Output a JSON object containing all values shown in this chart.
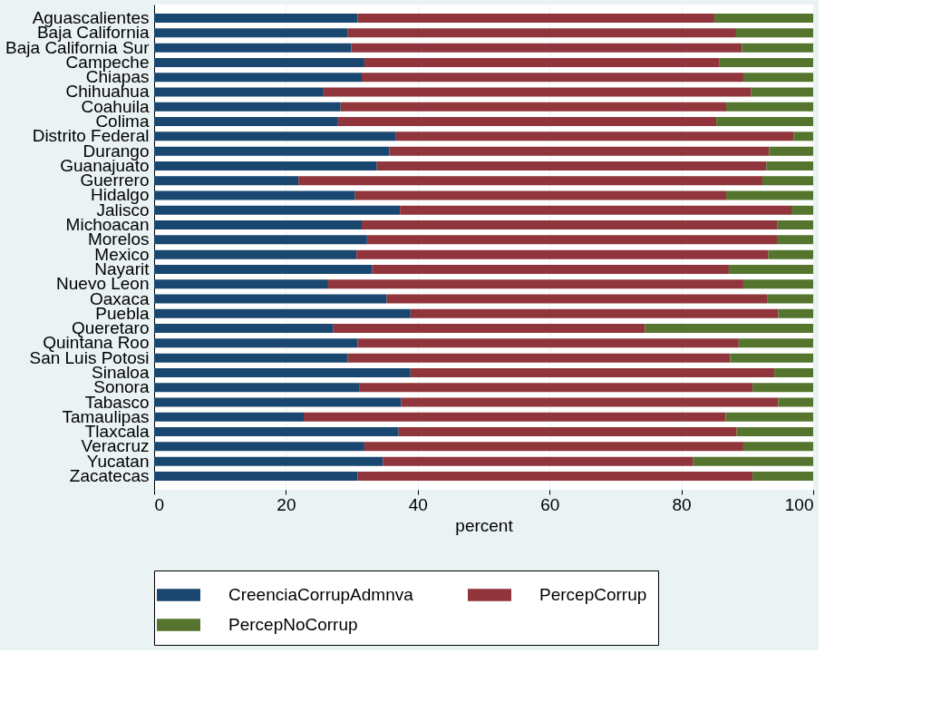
{
  "chart_data": {
    "type": "bar",
    "orientation": "horizontal",
    "stacked": true,
    "xlabel": "percent",
    "categories": [
      "Aguascalientes",
      "Baja California",
      "Baja California Sur",
      "Campeche",
      "Chiapas",
      "Chihuahua",
      "Coahuila",
      "Colima",
      "Distrito Federal",
      "Durango",
      "Guanajuato",
      "Guerrero",
      "Hidalgo",
      "Jalisco",
      "Michoacan",
      "Morelos",
      "Mexico",
      "Nayarit",
      "Nuevo Leon",
      "Oaxaca",
      "Puebla",
      "Queretaro",
      "Quintana Roo",
      "San Luis Potosi",
      "Sinaloa",
      "Sonora",
      "Tabasco",
      "Tamaulipas",
      "Tlaxcala",
      "Veracruz",
      "Yucatan",
      "Zacatecas"
    ],
    "series": [
      {
        "name": "CreenciaCorrupAdmnva",
        "color": "#1a476f",
        "values": [
          30.9,
          29.4,
          29.9,
          31.9,
          31.5,
          25.7,
          28.3,
          27.9,
          36.7,
          35.7,
          33.8,
          21.9,
          30.5,
          37.3,
          31.5,
          32.3,
          30.7,
          33.1,
          26.4,
          35.3,
          38.9,
          27.2,
          30.9,
          29.4,
          38.9,
          31.2,
          37.5,
          22.7,
          37.1,
          31.9,
          34.7,
          30.9
        ]
      },
      {
        "name": "PercepCorrup",
        "color": "#90353b",
        "values": [
          54.1,
          58.9,
          59.3,
          53.9,
          57.9,
          64.9,
          58.5,
          57.4,
          60.3,
          57.6,
          59.1,
          70.4,
          56.3,
          59.4,
          63.1,
          62.2,
          62.5,
          54.1,
          63.0,
          57.7,
          55.8,
          47.3,
          57.8,
          58.0,
          55.2,
          59.6,
          57.2,
          64.0,
          51.3,
          57.5,
          47.1,
          59.9
        ]
      },
      {
        "name": "PercepNoCorrup",
        "color": "#55752f",
        "values": [
          15.0,
          11.7,
          10.8,
          14.2,
          10.6,
          9.4,
          13.2,
          14.7,
          3.0,
          6.7,
          7.1,
          7.7,
          13.2,
          3.3,
          5.4,
          5.5,
          6.8,
          12.8,
          10.6,
          7.0,
          5.3,
          25.5,
          11.3,
          12.6,
          5.9,
          9.2,
          5.3,
          13.3,
          11.6,
          10.6,
          18.2,
          9.2
        ]
      }
    ],
    "xlim": [
      0,
      100
    ],
    "xticks": [
      0,
      20,
      40,
      60,
      80,
      100
    ],
    "grid": "x",
    "legend": "bottom"
  }
}
